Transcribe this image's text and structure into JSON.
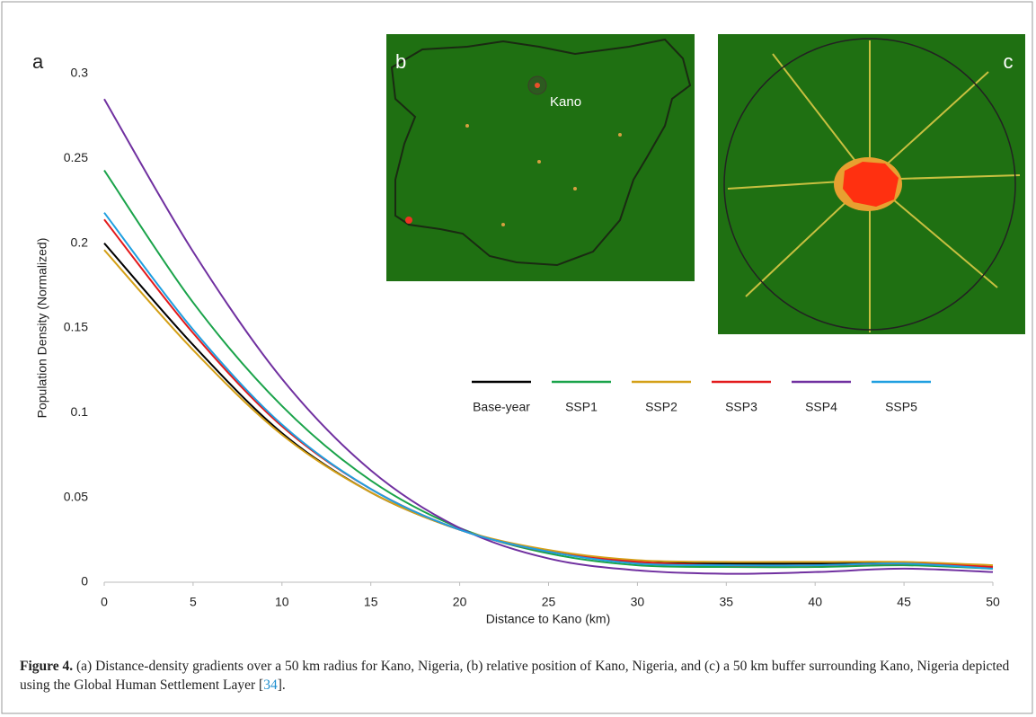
{
  "chart_data": {
    "type": "line",
    "x_label": "Distance to Kano (km)",
    "y_label": "Population Density (Normalized)",
    "x": [
      0,
      5,
      10,
      15,
      20,
      25,
      30,
      35,
      40,
      45,
      50
    ],
    "series": [
      {
        "name": "Base-year",
        "color": "#000000",
        "values": [
          0.2,
          0.14,
          0.088,
          0.053,
          0.031,
          0.018,
          0.012,
          0.011,
          0.011,
          0.011,
          0.009
        ]
      },
      {
        "name": "SSP1",
        "color": "#1aa34a",
        "values": [
          0.243,
          0.165,
          0.104,
          0.06,
          0.032,
          0.017,
          0.01,
          0.009,
          0.009,
          0.01,
          0.008
        ]
      },
      {
        "name": "SSP2",
        "color": "#d4a017",
        "values": [
          0.196,
          0.137,
          0.087,
          0.053,
          0.031,
          0.019,
          0.013,
          0.012,
          0.012,
          0.012,
          0.01
        ]
      },
      {
        "name": "SSP3",
        "color": "#e31a1c",
        "values": [
          0.214,
          0.147,
          0.092,
          0.055,
          0.031,
          0.018,
          0.012,
          0.01,
          0.01,
          0.011,
          0.009
        ]
      },
      {
        "name": "SSP4",
        "color": "#7030a0",
        "values": [
          0.285,
          0.195,
          0.12,
          0.066,
          0.032,
          0.014,
          0.007,
          0.005,
          0.006,
          0.008,
          0.006
        ]
      },
      {
        "name": "SSP5",
        "color": "#1f9fe0",
        "values": [
          0.218,
          0.149,
          0.093,
          0.055,
          0.031,
          0.018,
          0.011,
          0.01,
          0.01,
          0.011,
          0.008
        ]
      }
    ],
    "xlim": [
      0,
      50
    ],
    "xticks": [
      0,
      5,
      10,
      15,
      20,
      25,
      30,
      35,
      40,
      45,
      50
    ],
    "ylim": [
      0,
      0.3
    ],
    "yticks": [
      0,
      0.05,
      0.1,
      0.15,
      0.2,
      0.25,
      0.3
    ],
    "grid": false,
    "annotations": [
      "a",
      "b",
      "c",
      "Kano"
    ]
  },
  "caption": {
    "label": "Figure 4.",
    "text": " (a) Distance-density gradients over a 50 km radius for Kano, Nigeria, (b) relative position of Kano, Nigeria, and (c) a 50 km buffer surrounding Kano, Nigeria depicted using the Global Human Settlement Layer [",
    "ref": "34",
    "end": "]."
  }
}
